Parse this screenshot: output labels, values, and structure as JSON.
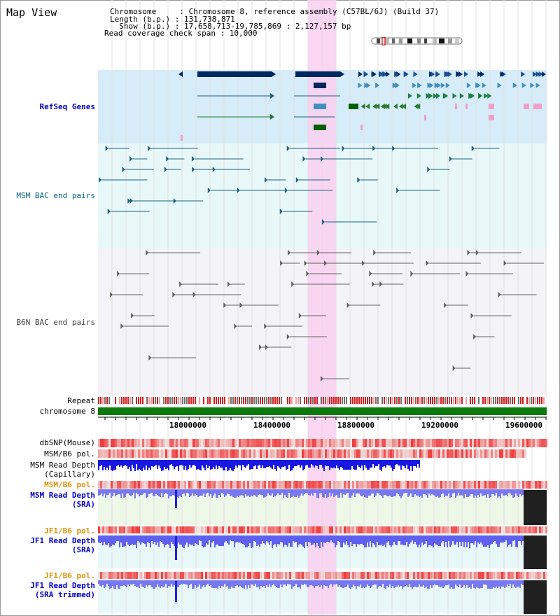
{
  "page_title": "Map View",
  "header": {
    "chromosome_line": "Chromosome     : Chromosome 8, reference assembly (C57BL/6J) (Build 37)",
    "length_line": "Length (b.p.) : 131,738,871",
    "show_line": "  Show (b.p.) : 17,658,713-19,785,869 : 2,127,157 bp",
    "coverage_line": "Read coverage check span : 10,000"
  },
  "tracks": {
    "refseq": "RefSeq Genes",
    "msm_bac": "MSM BAC end pairs",
    "b6n_bac": "B6N BAC end pairs",
    "repeat": "Repeat",
    "chromosome": "chromosome 8",
    "dbsnp": "dbSNP(Mouse)",
    "msm_pol_1": "MSM/B6 pol.",
    "msm_depth_cap": "MSM Read Depth\n(Capillary)",
    "msm_pol_2": "MSM/B6 pol.",
    "msm_depth_sra": "MSM Read Depth\n(SRA)",
    "jf1_pol_1": "JF1/B6 pol.",
    "jf1_depth_sra": "JF1 Read Depth\n(SRA)",
    "jf1_pol_2": "JF1/B6 pol.",
    "jf1_depth_trim": "JF1 Read Depth\n(SRA trimmed)"
  },
  "axis": {
    "ticks": [
      "18000000",
      "18400000",
      "18800000",
      "19200000",
      "19600000"
    ]
  },
  "colors": {
    "highlight": "#f8d0f0",
    "refseq_bg": "#d6ecf8",
    "msm_bac_bg": "#e8f8f8",
    "b6n_bac_bg": "#f4f4f8",
    "refseq_label": "#0000c8",
    "msm_label": "#006080",
    "b6n_label": "#404040",
    "chromosome_bar": "#0a7a0a",
    "depth_blue": "#2828e0",
    "orange_label": "#e09000"
  }
}
